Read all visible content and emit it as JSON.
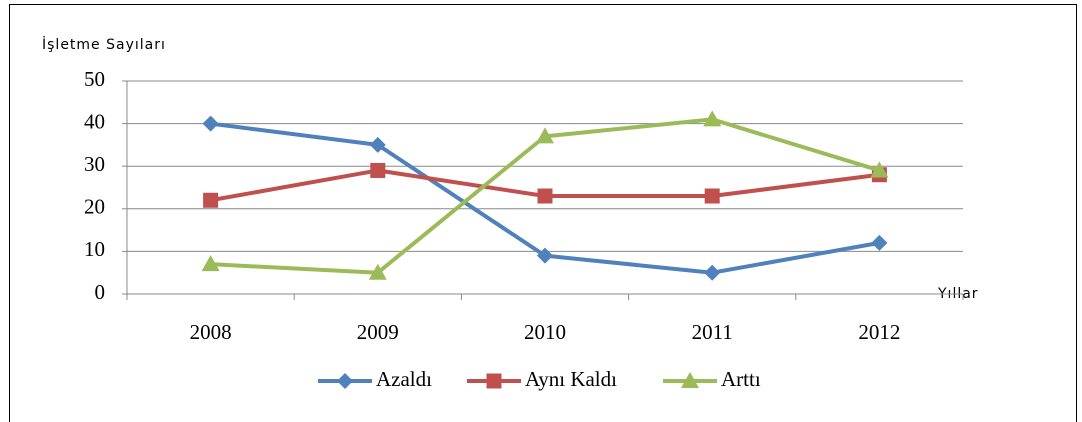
{
  "chart_data": {
    "type": "line",
    "y_label": "İşletme Sayıları",
    "x_label": "Yıllar",
    "categories": [
      "2008",
      "2009",
      "2010",
      "2011",
      "2012"
    ],
    "series": [
      {
        "name": "Azaldı",
        "color": "#4f81bd",
        "marker": "diamond",
        "values": [
          40,
          35,
          9,
          5,
          12
        ]
      },
      {
        "name": "Aynı Kaldı",
        "color": "#c0504d",
        "marker": "square",
        "values": [
          22,
          29,
          23,
          23,
          28
        ]
      },
      {
        "name": "Arttı",
        "color": "#9bbb59",
        "marker": "triangle",
        "values": [
          7,
          5,
          37,
          41,
          29
        ]
      }
    ],
    "ylim": [
      0,
      50
    ],
    "yticks": [
      0,
      10,
      20,
      30,
      40,
      50
    ],
    "grid": true,
    "legend": "bottom"
  }
}
